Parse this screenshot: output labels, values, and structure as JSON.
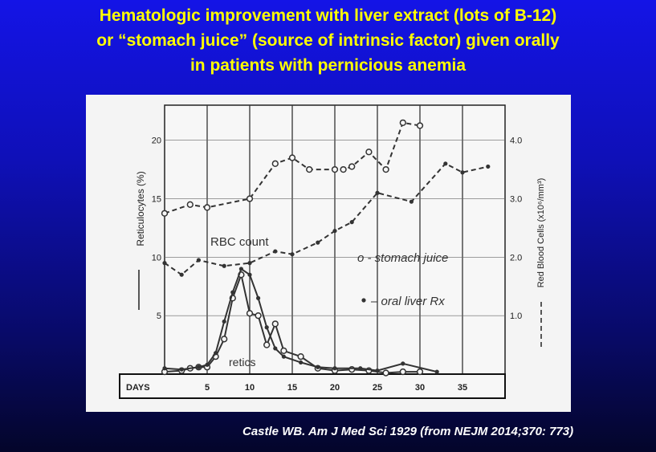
{
  "slide": {
    "title_lines": [
      "Hematologic improvement with liver extract (lots of B-12)",
      "or “stomach juice” (source of intrinsic factor) given orally",
      "in patients with pernicious anemia"
    ],
    "citation": "Castle WB.  Am J Med Sci 1929 (from NEJM 2014;370: 773)"
  },
  "chart_data": {
    "type": "line",
    "x_axis": {
      "label": "DAYS",
      "ticks": [
        5,
        10,
        15,
        20,
        25,
        30,
        35
      ],
      "tick_labels": [
        "5",
        "10",
        "15",
        "20",
        "25",
        "30",
        "35"
      ],
      "range": [
        0,
        40
      ]
    },
    "y_left": {
      "label": "Reticulocytes (%)",
      "ticks": [
        5,
        10,
        15,
        20
      ],
      "tick_labels": [
        "5",
        "10",
        "15",
        "20"
      ],
      "range": [
        0,
        23
      ]
    },
    "y_right": {
      "label": "Red Blood Cells (x10⁶/mm³)",
      "ticks": [
        1.0,
        2.0,
        3.0,
        4.0
      ],
      "tick_labels": [
        "1.0",
        "2.0",
        "3.0",
        "4.0"
      ],
      "range": [
        0,
        4.6
      ]
    },
    "grid": true,
    "annotations": {
      "rbc": "RBC count",
      "retics": "retics",
      "stomach_legend": "o -  stomach juice",
      "liver_legend": "– oral liver Rx"
    },
    "series": [
      {
        "id": "rbc_stomach",
        "axis": "right",
        "line": "dashed",
        "marker": "open-circle",
        "x": [
          0,
          3,
          5,
          10,
          13,
          15,
          17,
          20,
          21,
          22,
          24,
          26,
          28,
          30
        ],
        "y": [
          2.75,
          2.9,
          2.85,
          3.0,
          3.6,
          3.7,
          3.5,
          3.5,
          3.5,
          3.55,
          3.8,
          3.5,
          4.3,
          4.25
        ]
      },
      {
        "id": "rbc_liver",
        "axis": "right",
        "line": "dashed",
        "marker": "filled-dot",
        "x": [
          0,
          2,
          4,
          7,
          10,
          13,
          15,
          18,
          20,
          22,
          25,
          29,
          33,
          35,
          38
        ],
        "y": [
          1.9,
          1.7,
          1.95,
          1.85,
          1.9,
          2.1,
          2.05,
          2.25,
          2.45,
          2.6,
          3.1,
          2.95,
          3.6,
          3.45,
          3.55
        ]
      },
      {
        "id": "retics_stomach",
        "axis": "left",
        "line": "solid",
        "marker": "open-circle",
        "x": [
          0,
          2,
          3,
          4,
          5,
          6,
          7,
          8,
          9,
          10,
          11,
          12,
          13,
          14,
          16,
          18,
          20,
          22,
          24,
          26,
          28,
          30
        ],
        "y": [
          0.2,
          0.3,
          0.5,
          0.6,
          0.6,
          1.5,
          3.0,
          6.5,
          8.5,
          5.2,
          5.0,
          2.5,
          4.3,
          2.0,
          1.5,
          0.5,
          0.3,
          0.4,
          0.3,
          0.1,
          0.2,
          0.2
        ]
      },
      {
        "id": "retics_liver",
        "axis": "left",
        "line": "solid",
        "marker": "filled-dot",
        "x": [
          0,
          2,
          4,
          5,
          6,
          7,
          8,
          9,
          10,
          11,
          12,
          13,
          14,
          16,
          18,
          20,
          23,
          25,
          28,
          32
        ],
        "y": [
          0.5,
          0.4,
          0.6,
          0.8,
          1.8,
          4.5,
          7.0,
          9.0,
          8.5,
          6.5,
          4.0,
          2.2,
          1.5,
          1.0,
          0.6,
          0.5,
          0.5,
          0.3,
          0.9,
          0.2
        ]
      }
    ]
  }
}
